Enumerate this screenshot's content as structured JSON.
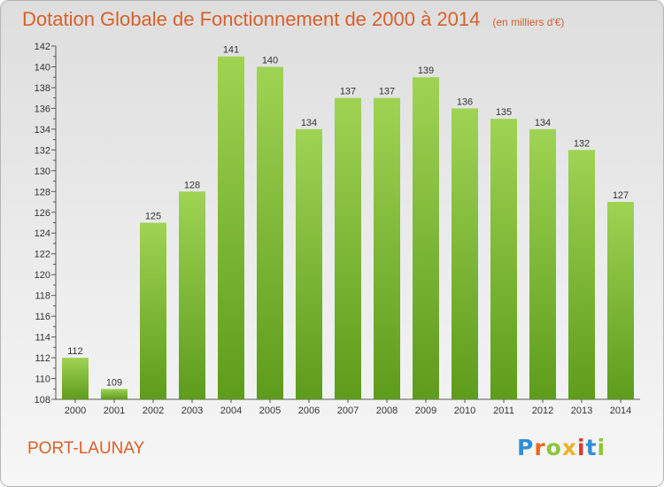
{
  "chart_data": {
    "type": "bar",
    "title": "Dotation Globale de Fonctionnement de 2000 à 2014",
    "subtitle": "(en milliers d'€)",
    "xlabel": "",
    "ylabel": "",
    "categories": [
      "2000",
      "2001",
      "2002",
      "2003",
      "2004",
      "2005",
      "2006",
      "2007",
      "2008",
      "2009",
      "2010",
      "2011",
      "2012",
      "2013",
      "2014"
    ],
    "values": [
      112,
      109,
      125,
      128,
      141,
      140,
      134,
      137,
      137,
      139,
      136,
      135,
      134,
      132,
      127
    ],
    "ylim": [
      108,
      142
    ],
    "yticks": [
      108,
      110,
      112,
      114,
      116,
      118,
      120,
      122,
      124,
      126,
      128,
      130,
      132,
      134,
      136,
      138,
      140,
      142
    ],
    "grid": false,
    "bar_color": "#8cc63f",
    "bar_color_dark": "#5c9a1a"
  },
  "footer": {
    "town": "PORT-LAUNAY",
    "logo": [
      "P",
      "r",
      "o",
      "x",
      "i",
      "t",
      "i"
    ]
  },
  "colors": {
    "accent": "#d9602a"
  }
}
